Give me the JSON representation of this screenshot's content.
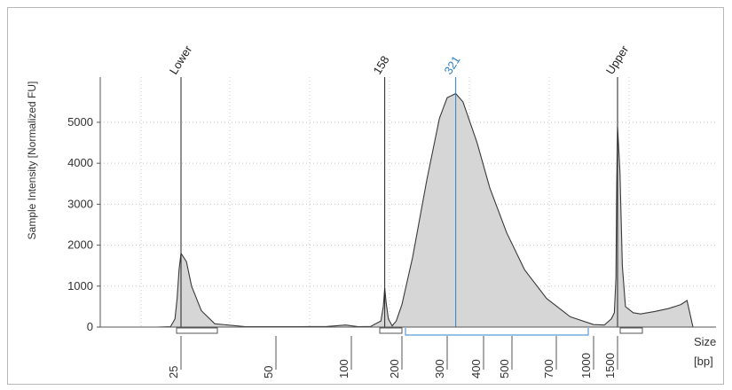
{
  "chart_data": {
    "type": "area",
    "title": "",
    "xlabel": "Size\n[bp]",
    "xlabel_line1": "Size",
    "xlabel_line2": "[bp]",
    "ylabel": "Sample Intensity [Normalized FU]",
    "ylim": [
      0,
      5800
    ],
    "y_ticks": [
      0,
      1000,
      2000,
      3000,
      4000,
      5000
    ],
    "x_scale": "log (electropherogram ladder)",
    "x_ticks": [
      "25",
      "50",
      "100",
      "200",
      "300",
      "400",
      "500",
      "700",
      "1000",
      "1500"
    ],
    "grid": true,
    "peak_labels": [
      {
        "label": "Lower",
        "size": 25,
        "color": "#222222"
      },
      {
        "label": "158",
        "size": 158,
        "color": "#222222"
      },
      {
        "label": "321",
        "size": 321,
        "color": "#2f7fc8"
      },
      {
        "label": "Upper",
        "size": 1500,
        "color": "#222222"
      }
    ],
    "region": {
      "from": 200,
      "to": 1000,
      "color": "#5b9bd5"
    },
    "series": [
      {
        "x": [
          15,
          20,
          22,
          23,
          24,
          25,
          26,
          27,
          29,
          32,
          40,
          60,
          80,
          90,
          95,
          100,
          110,
          130,
          150,
          155,
          158,
          161,
          166,
          175,
          185,
          200,
          220,
          250,
          280,
          300,
          321,
          340,
          380,
          420,
          480,
          550,
          650,
          800,
          1000,
          1200,
          1350,
          1420,
          1460,
          1480,
          1500,
          1515,
          1530,
          1550,
          1600,
          1650,
          1750,
          1850,
          1950,
          2000,
          2050
        ],
        "values": [
          0,
          10,
          200,
          700,
          1400,
          1800,
          1600,
          1000,
          400,
          80,
          10,
          10,
          15,
          40,
          50,
          30,
          10,
          15,
          150,
          500,
          950,
          600,
          200,
          30,
          150,
          550,
          1700,
          3600,
          5100,
          5600,
          5700,
          5500,
          4500,
          3400,
          2300,
          1400,
          700,
          250,
          60,
          50,
          200,
          350,
          1200,
          3500,
          4900,
          3800,
          1500,
          500,
          350,
          320,
          380,
          450,
          550,
          650,
          0
        ]
      }
    ]
  }
}
